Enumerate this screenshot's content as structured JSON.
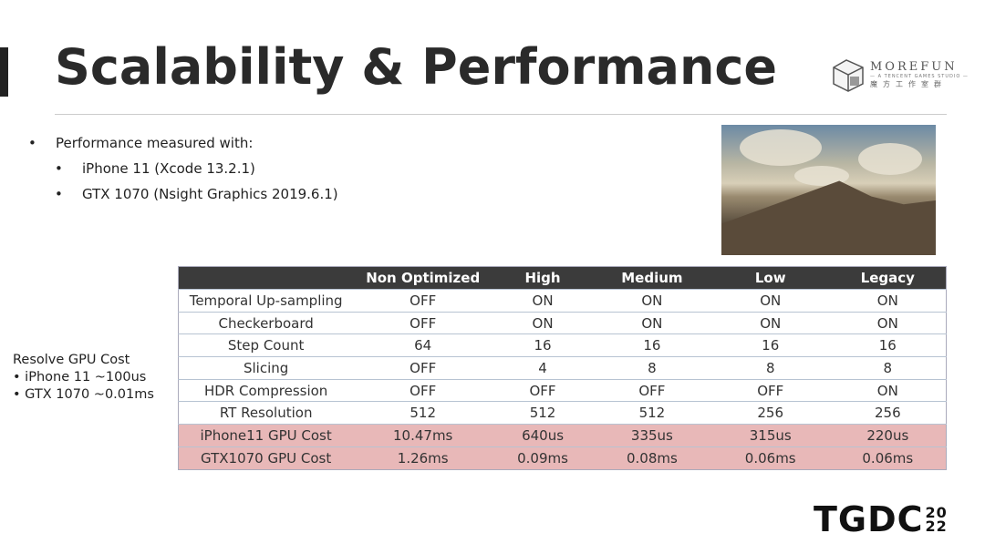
{
  "title": "Scalability & Performance",
  "logo": {
    "name": "MOREFUN",
    "tagline": "— A TENCENT GAMES STUDIO —",
    "chinese": "魔方工作室群"
  },
  "bullets": {
    "main": "Performance measured with:",
    "sub": [
      "iPhone 11 (Xcode 13.2.1)",
      "GTX 1070 (Nsight Graphics 2019.6.1)"
    ]
  },
  "resolve": {
    "title": "Resolve GPU Cost",
    "items": [
      "iPhone 11 ~100us",
      "GTX 1070 ~0.01ms"
    ]
  },
  "table": {
    "headers": [
      "",
      "Non Optimized",
      "High",
      "Medium",
      "Low",
      "Legacy"
    ],
    "rows": [
      [
        "Temporal Up-sampling",
        "OFF",
        "ON",
        "ON",
        "ON",
        "ON"
      ],
      [
        "Checkerboard",
        "OFF",
        "ON",
        "ON",
        "ON",
        "ON"
      ],
      [
        "Step Count",
        "64",
        "16",
        "16",
        "16",
        "16"
      ],
      [
        "Slicing",
        "OFF",
        "4",
        "8",
        "8",
        "8"
      ],
      [
        "HDR Compression",
        "OFF",
        "OFF",
        "OFF",
        "OFF",
        "ON"
      ],
      [
        "RT Resolution",
        "512",
        "512",
        "512",
        "256",
        "256"
      ],
      [
        "iPhone11 GPU Cost",
        "10.47ms",
        "640us",
        "335us",
        "315us",
        "220us"
      ],
      [
        "GTX1070 GPU Cost",
        "1.26ms",
        "0.09ms",
        "0.08ms",
        "0.06ms",
        "0.06ms"
      ]
    ]
  },
  "footer_logo": {
    "text": "TGDC",
    "year_top": "20",
    "year_bottom": "22"
  }
}
